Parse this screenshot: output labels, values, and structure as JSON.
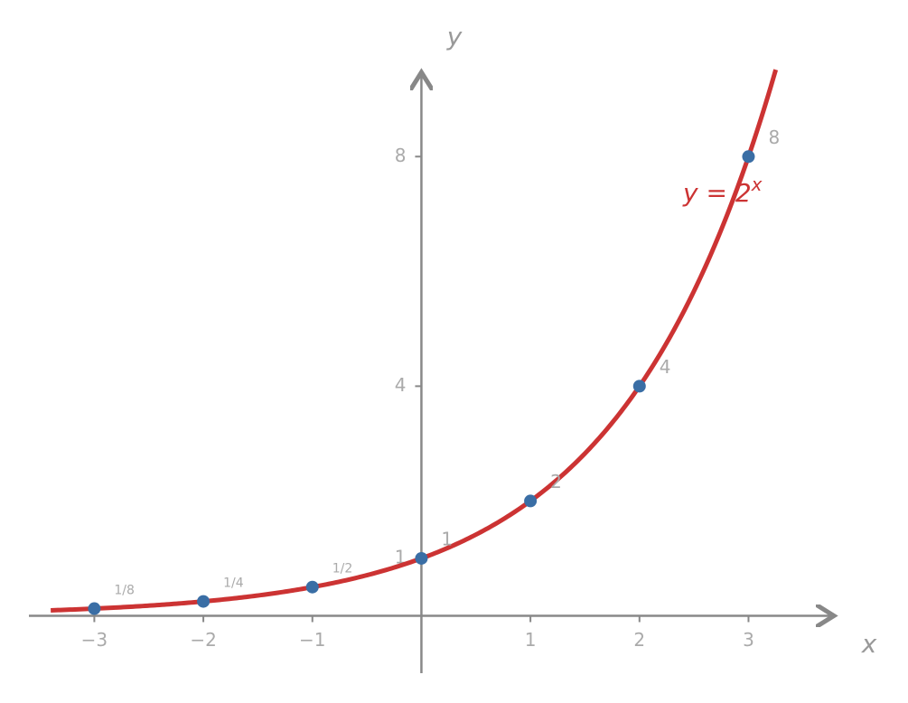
{
  "chart_data": {
    "type": "function",
    "x_label": "x",
    "y_label": "y",
    "xlim": [
      -3.6,
      3.8
    ],
    "ylim": [
      -1,
      9.5
    ],
    "xticks": [
      {
        "value": -3,
        "label": "−3"
      },
      {
        "value": -2,
        "label": "−2"
      },
      {
        "value": -1,
        "label": "−1"
      },
      1,
      2,
      3
    ],
    "yticks": [
      1,
      4,
      8
    ],
    "function": {
      "label": "y = 2",
      "exponent": "x",
      "base": 2,
      "domain": [
        -3.4,
        3.25
      ],
      "color": "#cc3333"
    },
    "points": {
      "color": "#3a6ea5",
      "x": [
        -3,
        -2,
        -1,
        0,
        1,
        2,
        3
      ],
      "values": [
        0.125,
        0.25,
        0.5,
        1,
        2,
        4,
        8
      ],
      "value_labels": [
        "1/8",
        "1/4",
        "1/2",
        "1",
        "2",
        "4",
        "8"
      ]
    }
  }
}
